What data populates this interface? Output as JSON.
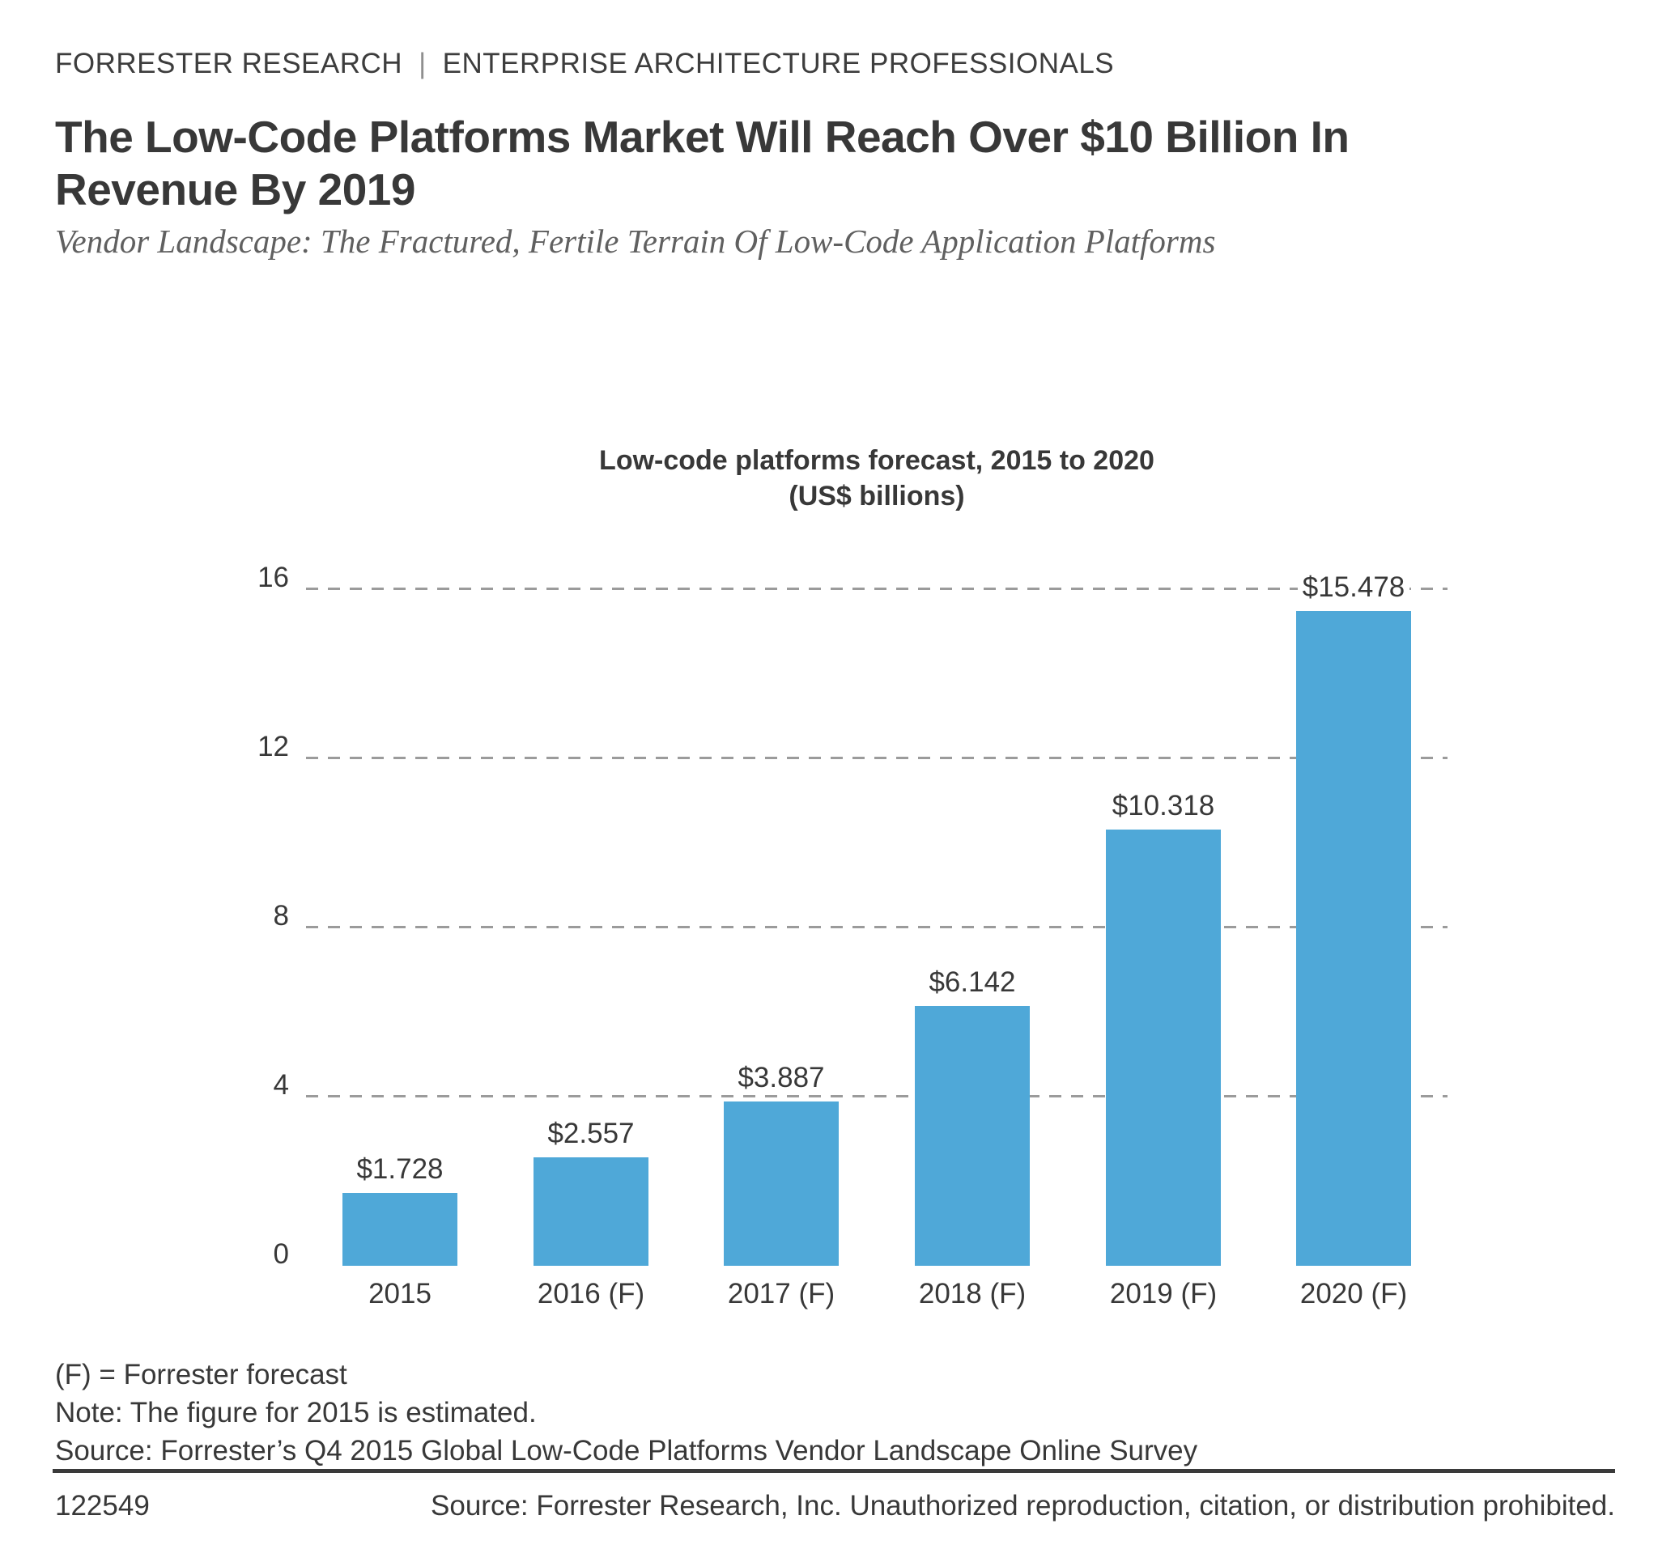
{
  "page": {
    "eyebrow": {
      "brand": "FORRESTER RESEARCH",
      "separator": "|",
      "audience": "ENTERPRISE ARCHITECTURE PROFESSIONALS"
    },
    "title_lines": [
      "The Low-Code Platforms Market Will Reach Over $10 Billion In",
      "Revenue By 2019"
    ],
    "subtitle": "Vendor Landscape: The Fractured, Fertile Terrain Of Low-Code Application Platforms"
  },
  "chart_data": {
    "type": "bar",
    "title": "Low-code platforms forecast, 2015 to 2020",
    "subtitle": "(US$ billions)",
    "categories": [
      "2015",
      "2016 (F)",
      "2017 (F)",
      "2018 (F)",
      "2019 (F)",
      "2020 (F)"
    ],
    "values": [
      1.728,
      2.557,
      3.887,
      6.142,
      10.318,
      15.478
    ],
    "value_labels": [
      "$1.728",
      "$2.557",
      "$3.887",
      "$6.142",
      "$10.318",
      "$15.478"
    ],
    "xlabel": "",
    "ylabel": "",
    "y_ticks": [
      0,
      4,
      8,
      12,
      16
    ],
    "ylim": [
      0,
      16.7
    ],
    "grid": "horizontal dashed gridlines at 4, 8, 12, 16; no axis lines",
    "legend_position": "none",
    "bar_color": "#4FA8D8",
    "gridline_color": "#9b9b9b"
  },
  "notes": {
    "forecast_key": "(F) = Forrester forecast",
    "estimate_note": "Note: The figure for 2015 is estimated.",
    "survey_source": "Source: Forrester’s Q4 2015 Global Low-Code Platforms Vendor Landscape Online Survey"
  },
  "footer": {
    "doc_id": "122549",
    "copyright": "Source: Forrester Research, Inc. Unauthorized reproduction, citation, or distribution prohibited."
  }
}
